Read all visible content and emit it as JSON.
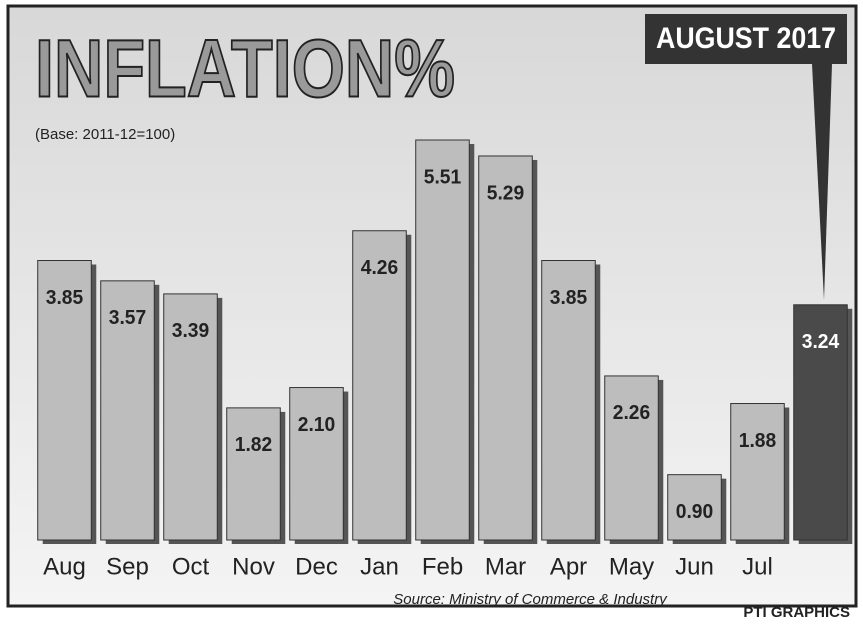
{
  "chart_data": {
    "type": "bar",
    "title": "INFLATION%",
    "subtitle": "(Base: 2011-12=100)",
    "badge": "AUGUST 2017",
    "source": "Source: Ministry of Commerce & Industry",
    "credit": "PTI GRAPHICS",
    "categories": [
      "Aug",
      "Sep",
      "Oct",
      "Nov",
      "Dec",
      "Jan",
      "Feb",
      "Mar",
      "Apr",
      "May",
      "Jun",
      "Jul",
      null
    ],
    "values": [
      3.85,
      3.57,
      3.39,
      1.82,
      2.1,
      4.26,
      5.51,
      5.29,
      3.85,
      2.26,
      0.9,
      1.88,
      3.24
    ],
    "value_labels": [
      "3.85",
      "3.57",
      "3.39",
      "1.82",
      "2.10",
      "4.26",
      "5.51",
      "5.29",
      "3.85",
      "2.26",
      "0.90",
      "1.88",
      "3.24"
    ],
    "colors": [
      "#bdbdbd",
      "#bdbdbd",
      "#bdbdbd",
      "#bdbdbd",
      "#bdbdbd",
      "#bdbdbd",
      "#bdbdbd",
      "#bdbdbd",
      "#bdbdbd",
      "#bdbdbd",
      "#bdbdbd",
      "#bdbdbd",
      "#4a4a4a"
    ]
  }
}
